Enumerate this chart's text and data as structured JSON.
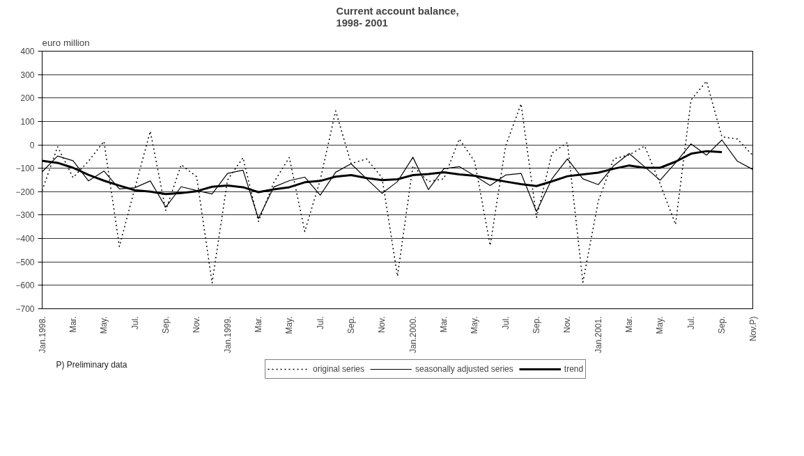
{
  "chart_data": {
    "type": "line",
    "title": "Current account balance,\n1998- 2001",
    "ylabel": "euro million",
    "categories": [
      "Jan.1998.",
      null,
      "Mar.",
      null,
      "May.",
      null,
      "Jul.",
      null,
      "Sep.",
      null,
      "Nov.",
      null,
      "Jan.1999.",
      null,
      "Mar.",
      null,
      "May.",
      null,
      "Jul.",
      null,
      "Sep.",
      null,
      "Nov.",
      null,
      "Jan.2000.",
      null,
      "Mar.",
      null,
      "May.",
      null,
      "Jul.",
      null,
      "Sep.",
      null,
      "Nov.",
      null,
      "Jan.2001.",
      null,
      "Mar.",
      null,
      "May.",
      null,
      "Jul.",
      null,
      "Sep.",
      null,
      "Nov.P)"
    ],
    "series": [
      {
        "name": "original series",
        "color": "#000000",
        "line_style": "dotted",
        "values": [
          -195,
          -8,
          -140,
          -70,
          15,
          -434,
          -185,
          58,
          -280,
          -85,
          -136,
          -590,
          -150,
          -55,
          -327,
          -160,
          -54,
          -370,
          -150,
          145,
          -80,
          -60,
          -140,
          -561,
          -90,
          -157,
          -145,
          25,
          -72,
          -430,
          -5,
          175,
          -310,
          -35,
          10,
          -587,
          -240,
          -60,
          -43,
          -5,
          -166,
          -340,
          191,
          272,
          34,
          25,
          -45
        ]
      },
      {
        "name": "seasonally adjusted series",
        "color": "#000000",
        "line_style": "solid",
        "values": [
          -115,
          -48,
          -68,
          -154,
          -112,
          -188,
          -183,
          -154,
          -266,
          -179,
          -195,
          -210,
          -122,
          -108,
          -315,
          -180,
          -153,
          -138,
          -215,
          -117,
          -81,
          -145,
          -207,
          -157,
          -53,
          -191,
          -102,
          -93,
          -132,
          -174,
          -129,
          -122,
          -285,
          -145,
          -60,
          -145,
          -170,
          -89,
          -37,
          -94,
          -151,
          -77,
          4,
          -44,
          21,
          -70,
          -105
        ]
      },
      {
        "name": "trend",
        "color": "#000000",
        "line_style": "solid",
        "values": [
          -68,
          -77,
          -98,
          -128,
          -153,
          -174,
          -194,
          -200,
          -210,
          -206,
          -198,
          -179,
          -174,
          -181,
          -202,
          -190,
          -181,
          -160,
          -154,
          -136,
          -129,
          -142,
          -151,
          -147,
          -129,
          -125,
          -117,
          -126,
          -132,
          -145,
          -157,
          -168,
          -176,
          -156,
          -134,
          -126,
          -119,
          -102,
          -88,
          -98,
          -98,
          -72,
          -38,
          -27,
          -31,
          null,
          null
        ]
      }
    ],
    "ylim": [
      -700,
      400
    ],
    "yticks": [
      -700,
      -600,
      -500,
      -400,
      -300,
      -200,
      -100,
      0,
      100,
      200,
      300,
      400
    ],
    "grid": "y",
    "legend": "bottom",
    "marker": "none",
    "annotations": [
      "P) Preliminary data"
    ]
  }
}
